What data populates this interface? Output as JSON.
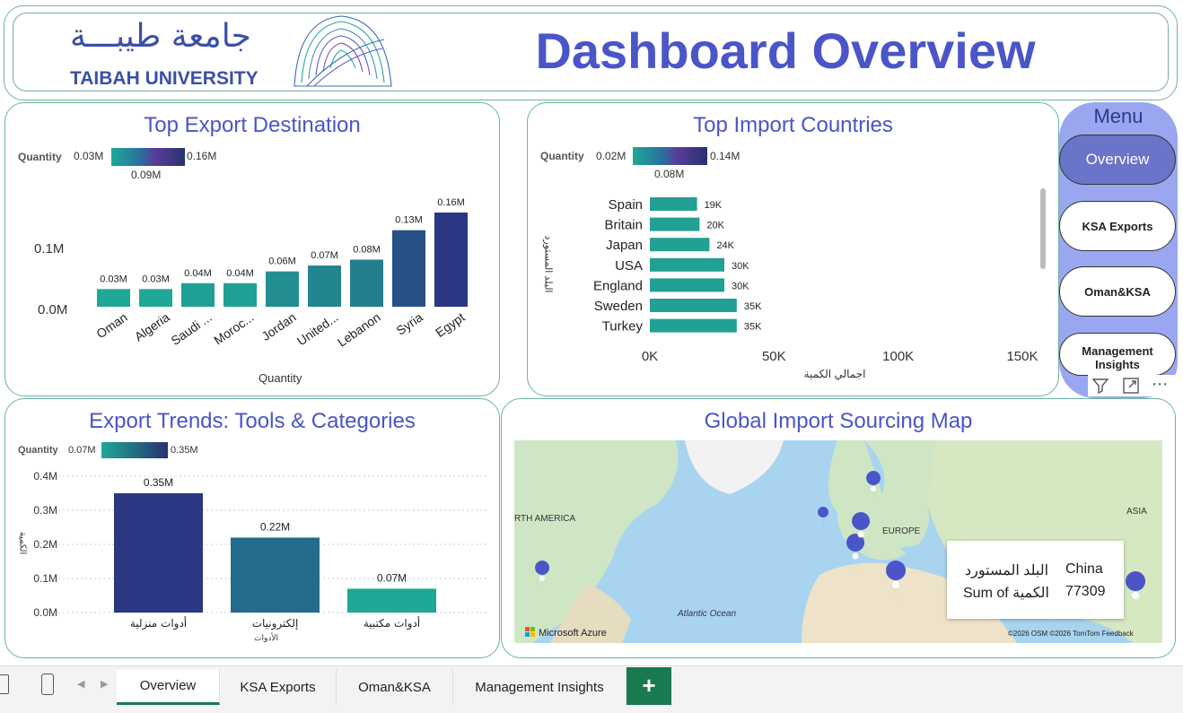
{
  "header": {
    "logo_arabic": "جامعة طيبـــة",
    "logo_english": "TAIBAH UNIVERSITY",
    "title": "Dashboard Overview"
  },
  "menu": {
    "title": "Menu",
    "items": [
      "Overview",
      "KSA Exports",
      "Oman&KSA",
      "Management Insights"
    ]
  },
  "export_destination": {
    "title": "Top Export Destination",
    "legend_label": "Quantity",
    "legend_min": "0.03M",
    "legend_mid": "0.09M",
    "legend_max": "0.16M",
    "y_ticks": [
      "0.1M",
      "0.0M"
    ],
    "xlabel": "Quantity"
  },
  "import_countries": {
    "title": "Top Import Countries",
    "legend_label": "Quantity",
    "legend_min": "0.02M",
    "legend_mid": "0.08M",
    "legend_max": "0.14M",
    "x_ticks": [
      "0K",
      "50K",
      "100K",
      "150K"
    ],
    "xlabel": "اجمالي الكمية",
    "ylabel": "البلد المستورد"
  },
  "export_trends": {
    "title": "Export Trends: Tools & Categories",
    "legend_label": "Quantity",
    "legend_min": "0.07M",
    "legend_max": "0.35M",
    "y_ticks": [
      "0.4M",
      "0.3M",
      "0.2M",
      "0.1M",
      "0.0M"
    ],
    "ylabel": "الكمية",
    "xlabel": "الأدوات"
  },
  "map": {
    "title": "Global Import Sourcing Map",
    "labels": {
      "north_america": "RTH AMERICA",
      "europe": "EUROPE",
      "asia": "ASIA",
      "ocean": "Atlantic Ocean"
    },
    "brand": "Microsoft Azure",
    "attribution": "©2026 OSM  ©2026 TomTom  Feedback",
    "tooltip": {
      "field1_label": "البلد المستورد",
      "field1_value": "China",
      "field2_label": "Sum of الكمية",
      "field2_value": "77309"
    }
  },
  "tabs": [
    "Overview",
    "KSA Exports",
    "Oman&KSA",
    "Management Insights"
  ],
  "add_tab": "+",
  "colors": {
    "title": "#4a55c8",
    "menu_bg": "#9aa6f0",
    "tab_accent": "#1a7a4f"
  },
  "chart_data": [
    {
      "type": "bar",
      "title": "Top Export Destination",
      "categories": [
        "Oman",
        "Algeria",
        "Saudi ...",
        "Moroc...",
        "Jordan",
        "United...",
        "Lebanon",
        "Syria",
        "Egypt"
      ],
      "values": [
        0.03,
        0.03,
        0.04,
        0.04,
        0.06,
        0.07,
        0.08,
        0.13,
        0.16
      ],
      "data_labels": [
        "0.03M",
        "0.03M",
        "0.04M",
        "0.04M",
        "0.06M",
        "0.07M",
        "0.08M",
        "0.13M",
        "0.16M"
      ],
      "xlabel": "Quantity",
      "ylim": [
        0,
        0.16
      ]
    },
    {
      "type": "bar",
      "title": "Top Import Countries",
      "orientation": "horizontal",
      "categories": [
        "Spain",
        "Britain",
        "Japan",
        "USA",
        "England",
        "Sweden",
        "Turkey"
      ],
      "values": [
        19,
        20,
        24,
        30,
        30,
        35,
        35
      ],
      "data_labels": [
        "19K",
        "20K",
        "24K",
        "30K",
        "30K",
        "35K",
        "35K"
      ],
      "xlabel": "اجمالي الكمية",
      "ylabel": "البلد المستورد",
      "xlim": [
        0,
        150
      ]
    },
    {
      "type": "bar",
      "title": "Export Trends: Tools & Categories",
      "categories": [
        "أدوات منزلية",
        "إلكترونيات",
        "أدوات مكتبية"
      ],
      "values": [
        0.35,
        0.22,
        0.07
      ],
      "data_labels": [
        "0.35M",
        "0.22M",
        "0.07M"
      ],
      "xlabel": "الأدوات",
      "ylabel": "الكمية",
      "ylim": [
        0,
        0.4
      ]
    }
  ]
}
